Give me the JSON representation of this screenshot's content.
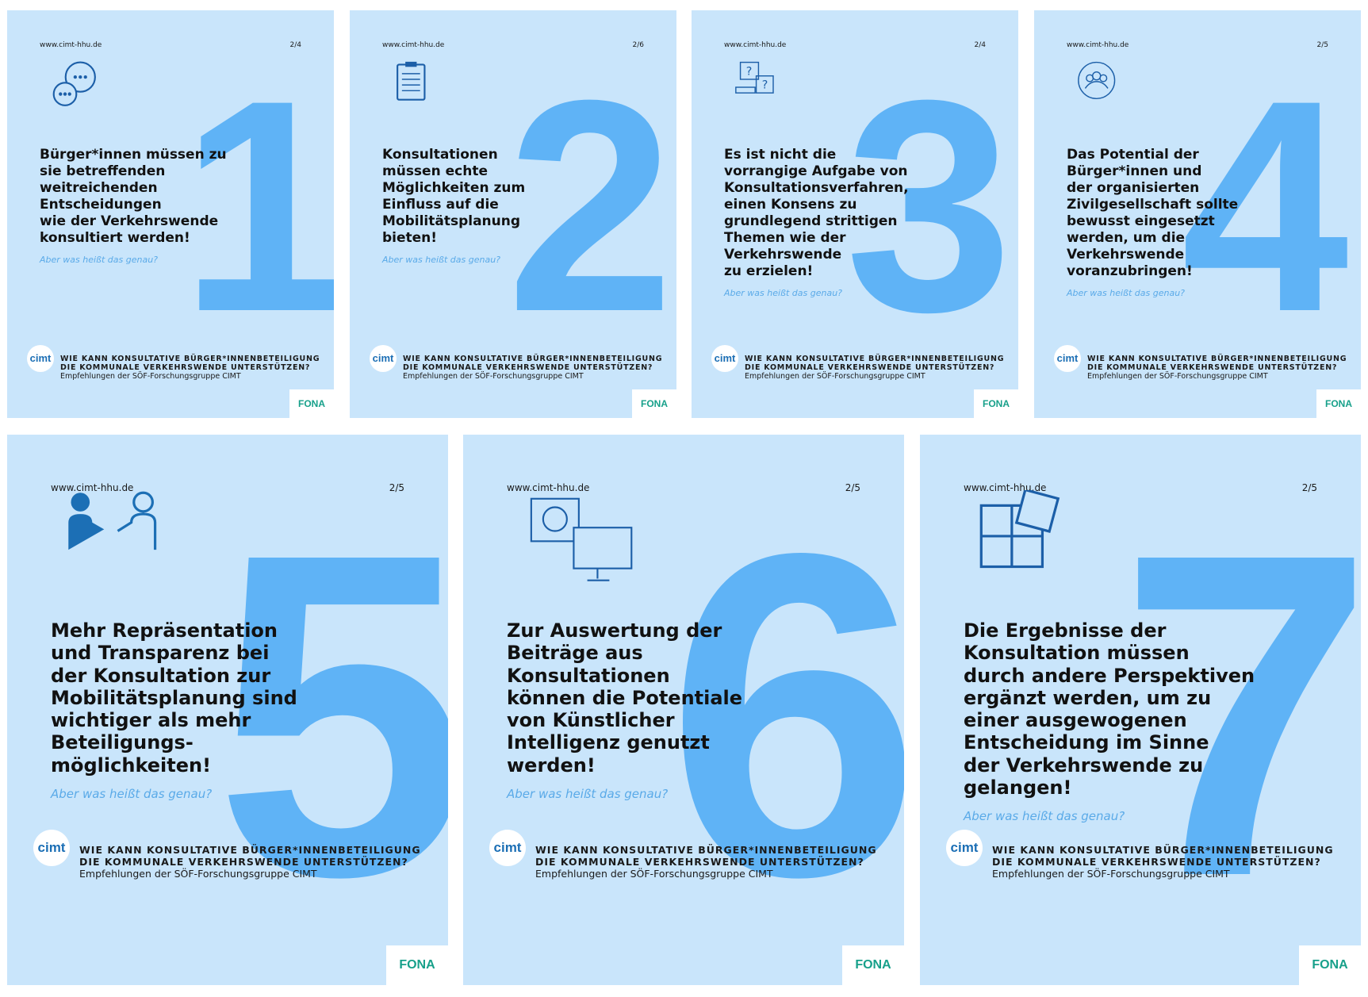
{
  "cards": [
    {
      "url": "www.cimt-hhu.de",
      "page": "2/4",
      "number": "1",
      "text": [
        "Bürger*innen müssen zu",
        "sie betreffenden",
        "weitreichenden",
        "Entscheidungen",
        "wie der Verkehrswende",
        "konsultiert werden!"
      ],
      "question": "Aber was heißt das genau?",
      "footer_title": [
        "WIE KANN KONSULTATIVE BÜRGER*INNENBETEILIGUNG",
        "DIE KOMMUNALE VERKEHRSWENDE UNTERSTÜTZEN?"
      ],
      "footer_subtitle": "Empfehlungen der SÖF-Forschungsgruppe CIMT",
      "logo": "cimt",
      "fona": "FONA"
    },
    {
      "url": "www.cimt-hhu.de",
      "page": "2/6",
      "number": "2",
      "text": [
        "Konsultationen",
        "müssen echte",
        "Möglichkeiten zum",
        "Einfluss auf die",
        "Mobilitätsplanung",
        "bieten!"
      ],
      "question": "Aber was heißt das genau?",
      "footer_title": [
        "WIE KANN KONSULTATIVE BÜRGER*INNENBETEILIGUNG",
        "DIE KOMMUNALE VERKEHRSWENDE UNTERSTÜTZEN?"
      ],
      "footer_subtitle": "Empfehlungen der SÖF-Forschungsgruppe CIMT",
      "logo": "cimt",
      "fona": "FONA"
    },
    {
      "url": "www.cimt-hhu.de",
      "page": "2/4",
      "number": "3",
      "text": [
        "Es ist nicht die",
        "vorrangige Aufgabe von",
        "Konsultationsverfahren,",
        "einen Konsens zu",
        "grundlegend strittigen",
        "Themen wie der",
        "Verkehrswende",
        "zu erzielen!"
      ],
      "question": "Aber was heißt das genau?",
      "footer_title": [
        "WIE KANN KONSULTATIVE BÜRGER*INNENBETEILIGUNG",
        "DIE KOMMUNALE VERKEHRSWENDE UNTERSTÜTZEN?"
      ],
      "footer_subtitle": "Empfehlungen der SÖF-Forschungsgruppe CIMT",
      "logo": "cimt",
      "fona": "FONA"
    },
    {
      "url": "www.cimt-hhu.de",
      "page": "2/5",
      "number": "4",
      "text": [
        "Das Potential der",
        "Bürger*innen und",
        "der organisierten",
        "Zivilgesellschaft sollte",
        "bewusst eingesetzt",
        "werden, um die",
        "Verkehrswende",
        "voranzubringen!"
      ],
      "question": "Aber was heißt das genau?",
      "footer_title": [
        "WIE KANN KONSULTATIVE BÜRGER*INNENBETEILIGUNG",
        "DIE KOMMUNALE VERKEHRSWENDE UNTERSTÜTZEN?"
      ],
      "footer_subtitle": "Empfehlungen der SÖF-Forschungsgruppe CIMT",
      "logo": "cimt",
      "fona": "FONA"
    },
    {
      "url": "www.cimt-hhu.de",
      "page": "2/5",
      "number": "5",
      "text": [
        "Mehr Repräsentation",
        "und Transparenz bei",
        "der Konsultation zur",
        "Mobilitätsplanung sind",
        "wichtiger als mehr",
        "Beteiligungs-",
        "möglichkeiten!"
      ],
      "question": "Aber was heißt das genau?",
      "footer_title": [
        "WIE KANN KONSULTATIVE BÜRGER*INNENBETEILIGUNG",
        "DIE KOMMUNALE VERKEHRSWENDE UNTERSTÜTZEN?"
      ],
      "footer_subtitle": "Empfehlungen der SÖF-Forschungsgruppe CIMT",
      "logo": "cimt",
      "fona": "FONA"
    },
    {
      "url": "www.cimt-hhu.de",
      "page": "2/5",
      "number": "6",
      "text": [
        "Zur Auswertung der",
        "Beiträge aus",
        "Konsultationen",
        "können die Potentiale",
        "von Künstlicher",
        "Intelligenz genutzt",
        "werden!"
      ],
      "question": "Aber was heißt das genau?",
      "footer_title": [
        "WIE KANN KONSULTATIVE BÜRGER*INNENBETEILIGUNG",
        "DIE KOMMUNALE VERKEHRSWENDE UNTERSTÜTZEN?"
      ],
      "footer_subtitle": "Empfehlungen der SÖF-Forschungsgruppe CIMT",
      "logo": "cimt",
      "fona": "FONA"
    },
    {
      "url": "www.cimt-hhu.de",
      "page": "2/5",
      "number": "7",
      "text": [
        "Die Ergebnisse der",
        "Konsultation müssen",
        "durch andere Perspektiven",
        "ergänzt werden, um zu",
        "einer ausgewogenen",
        "Entscheidung im Sinne",
        "der Verkehrswende zu",
        "gelangen!"
      ],
      "question": "Aber was heißt das genau?",
      "footer_title": [
        "WIE KANN KONSULTATIVE BÜRGER*INNENBETEILIGUNG",
        "DIE KOMMUNALE VERKEHRSWENDE UNTERSTÜTZEN?"
      ],
      "footer_subtitle": "Empfehlungen der SÖF-Forschungsgruppe CIMT",
      "logo": "cimt",
      "fona": "FONA"
    }
  ]
}
